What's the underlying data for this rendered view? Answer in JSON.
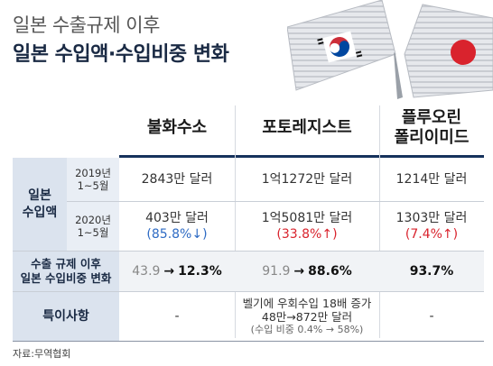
{
  "title": {
    "line1": "일본 수출규제 이후",
    "line2": "일본 수입액·수입비중 변화"
  },
  "columns": [
    "불화수소",
    "포토레지스트",
    "플루오린\n폴리이미드"
  ],
  "rows": {
    "import_label": "일본\n수입액",
    "y2019": {
      "label": "2019년\n1~5월",
      "values": [
        "2843만 달러",
        "1억1272만 달러",
        "1214만 달러"
      ]
    },
    "y2020": {
      "label": "2020년\n1~5월",
      "values": [
        "403만 달러",
        "1억5081만 달러",
        "1303만 달러"
      ],
      "changes": [
        "(85.8%↓)",
        "(33.8%↑)",
        "(7.4%↑)"
      ]
    },
    "share": {
      "label": "수출 규제 이후\n일본 수입비중 변화",
      "values": [
        {
          "before": "43.9",
          "arrow": "→",
          "after": "12.3%"
        },
        {
          "before": "91.9",
          "arrow": "→",
          "after": "88.6%"
        },
        {
          "before": "",
          "arrow": "",
          "after": "93.7%"
        }
      ]
    },
    "notes": {
      "label": "특이사항",
      "values": [
        "-",
        "벨기에 우회수입 18배 증가\n48만→872만 달러",
        "-"
      ],
      "subnote": "(수입 비중 0.4% → 58%)"
    }
  },
  "source": "자료:무역협회",
  "colors": {
    "navy": "#16325c",
    "blue": "#2e6bc4",
    "red": "#d9232d",
    "label_bg": "#dbe3ee"
  }
}
